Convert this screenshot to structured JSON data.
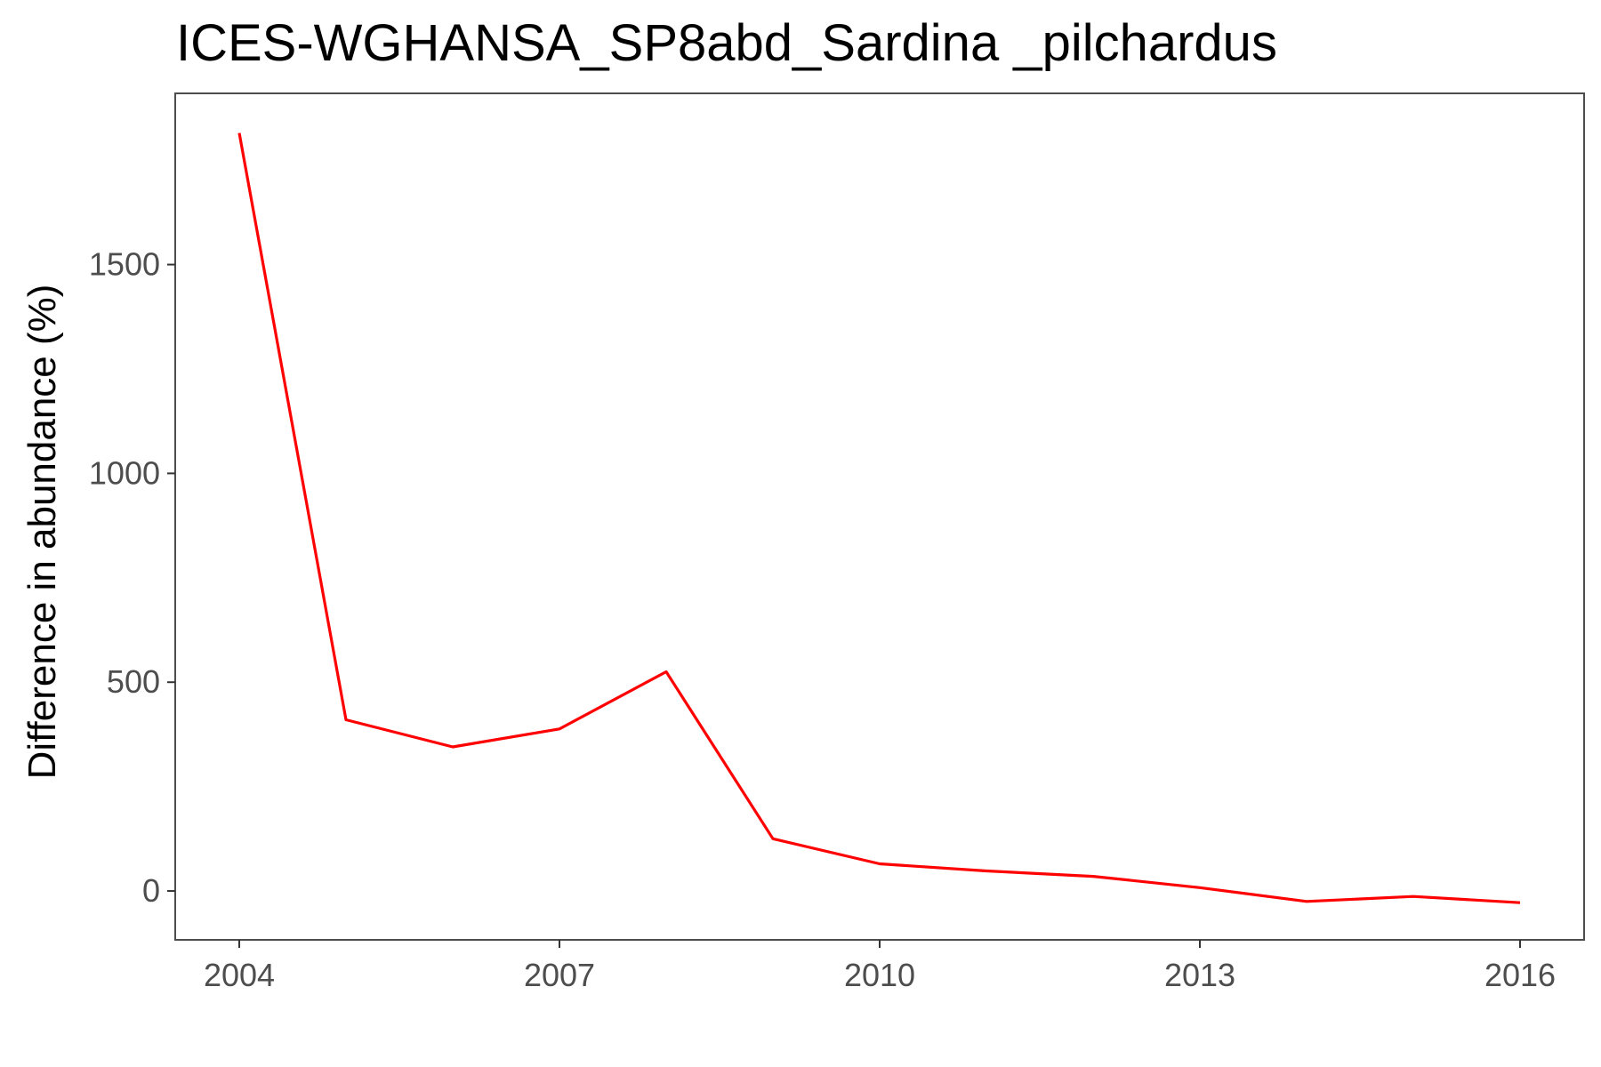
{
  "chart_data": {
    "type": "line",
    "title": "ICES-WGHANSA_SP8abd_Sardina _pilchardus",
    "xlabel": "",
    "ylabel": "Difference in abundance (%)",
    "xlim": [
      2003.4,
      2016.6
    ],
    "ylim": [
      -117,
      1910
    ],
    "x_ticks": [
      2004,
      2007,
      2010,
      2013,
      2016
    ],
    "x_tick_labels": [
      "2004",
      "2007",
      "2010",
      "2013",
      "2016"
    ],
    "y_ticks": [
      0,
      500,
      1000,
      1500
    ],
    "y_tick_labels": [
      "0",
      "500",
      "1000",
      "1500"
    ],
    "grid": false,
    "legend": "none",
    "series": [
      {
        "color": "#ff0000",
        "x": [
          2004,
          2005,
          2006,
          2007,
          2008,
          2009,
          2010,
          2011,
          2012,
          2013,
          2014,
          2015,
          2016
        ],
        "y": [
          1815,
          410,
          345,
          388,
          525,
          125,
          65,
          48,
          35,
          8,
          -25,
          -13,
          -28
        ]
      }
    ]
  }
}
